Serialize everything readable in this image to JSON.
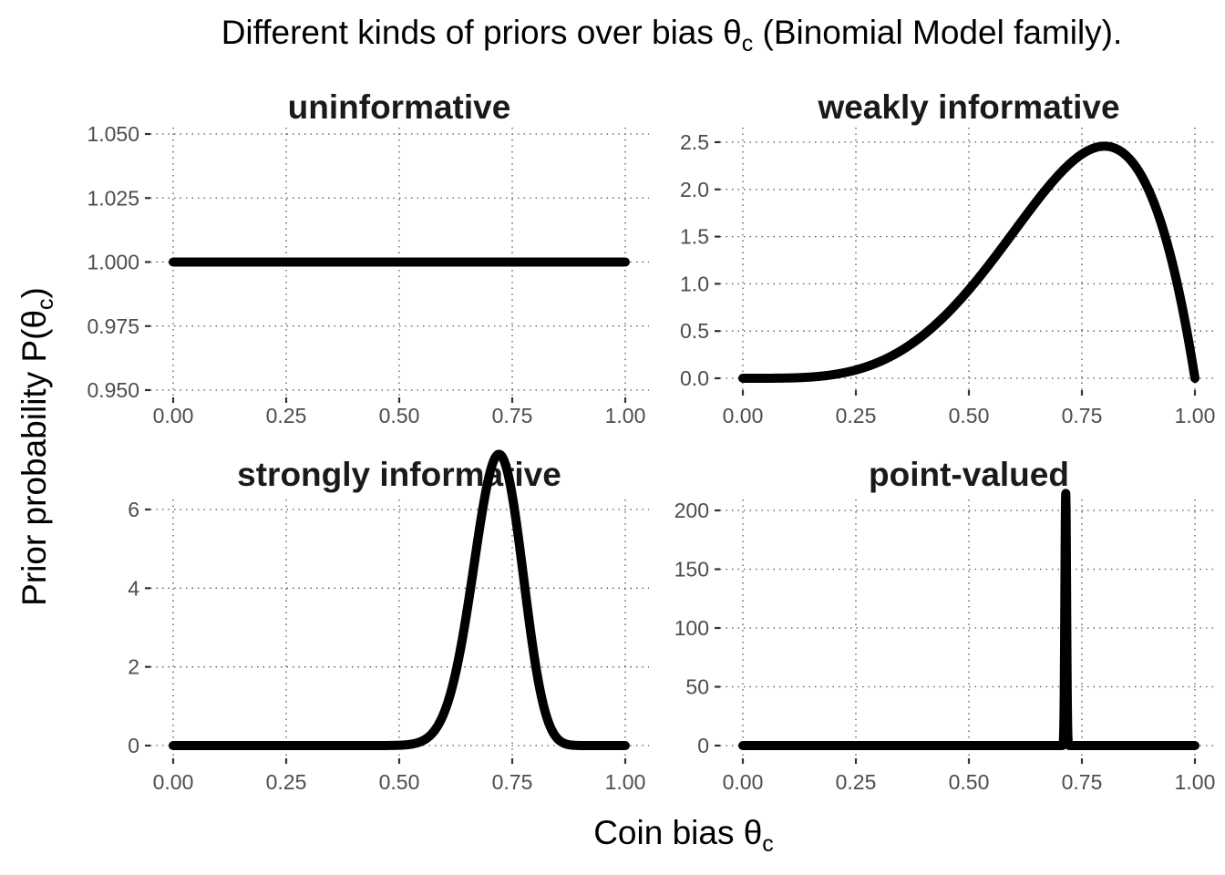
{
  "chart_data": {
    "type": "line",
    "title": "Different kinds of priors over bias θ",
    "title_subscript": "c",
    "title_suffix": " (Binomial Model family).",
    "xlabel": "Coin bias θ",
    "xlabel_subscript": "c",
    "ylabel": "Prior probability P(θ",
    "ylabel_subscript": "c",
    "ylabel_suffix": ")",
    "grid": true,
    "curve_color": "#000000",
    "panels": [
      {
        "title": "uninformative",
        "distribution": {
          "kind": "beta",
          "a": 1,
          "b": 1
        },
        "xlim": [
          0,
          1
        ],
        "ylim": [
          0.95,
          1.05
        ],
        "xticks": [
          0,
          0.25,
          0.5,
          0.75,
          1
        ],
        "xtick_labels": [
          "0.00",
          "0.25",
          "0.50",
          "0.75",
          "1.00"
        ],
        "yticks": [
          0.95,
          0.975,
          1.0,
          1.025,
          1.05
        ],
        "ytick_labels": [
          "0.950",
          "0.975",
          "1.000",
          "1.025",
          "1.050"
        ]
      },
      {
        "title": "weakly informative",
        "distribution": {
          "kind": "beta",
          "a": 5,
          "b": 2
        },
        "xlim": [
          0,
          1
        ],
        "ylim": [
          0,
          2.5
        ],
        "xticks": [
          0,
          0.25,
          0.5,
          0.75,
          1
        ],
        "xtick_labels": [
          "0.00",
          "0.25",
          "0.50",
          "0.75",
          "1.00"
        ],
        "yticks": [
          0,
          0.5,
          1,
          1.5,
          2,
          2.5
        ],
        "ytick_labels": [
          "0.0",
          "0.5",
          "1.0",
          "1.5",
          "2.0",
          "2.5"
        ]
      },
      {
        "title": "strongly informative",
        "distribution": {
          "kind": "beta",
          "a": 50,
          "b": 20
        },
        "xlim": [
          0,
          1
        ],
        "ylim": [
          0,
          7.5
        ],
        "xticks": [
          0,
          0.25,
          0.5,
          0.75,
          1
        ],
        "xtick_labels": [
          "0.00",
          "0.25",
          "0.50",
          "0.75",
          "1.00"
        ],
        "yticks": [
          0,
          2,
          4,
          6
        ],
        "ytick_labels": [
          "0",
          "2",
          "4",
          "6"
        ]
      },
      {
        "title": "point-valued",
        "distribution": {
          "kind": "beta",
          "a": 42140,
          "b": 16860
        },
        "xlim": [
          0,
          1
        ],
        "ylim": [
          0,
          216
        ],
        "xticks": [
          0,
          0.25,
          0.5,
          0.75,
          1
        ],
        "xtick_labels": [
          "0.00",
          "0.25",
          "0.50",
          "0.75",
          "1.00"
        ],
        "yticks": [
          0,
          50,
          100,
          150,
          200
        ],
        "ytick_labels": [
          "0",
          "50",
          "100",
          "150",
          "200"
        ]
      }
    ]
  }
}
